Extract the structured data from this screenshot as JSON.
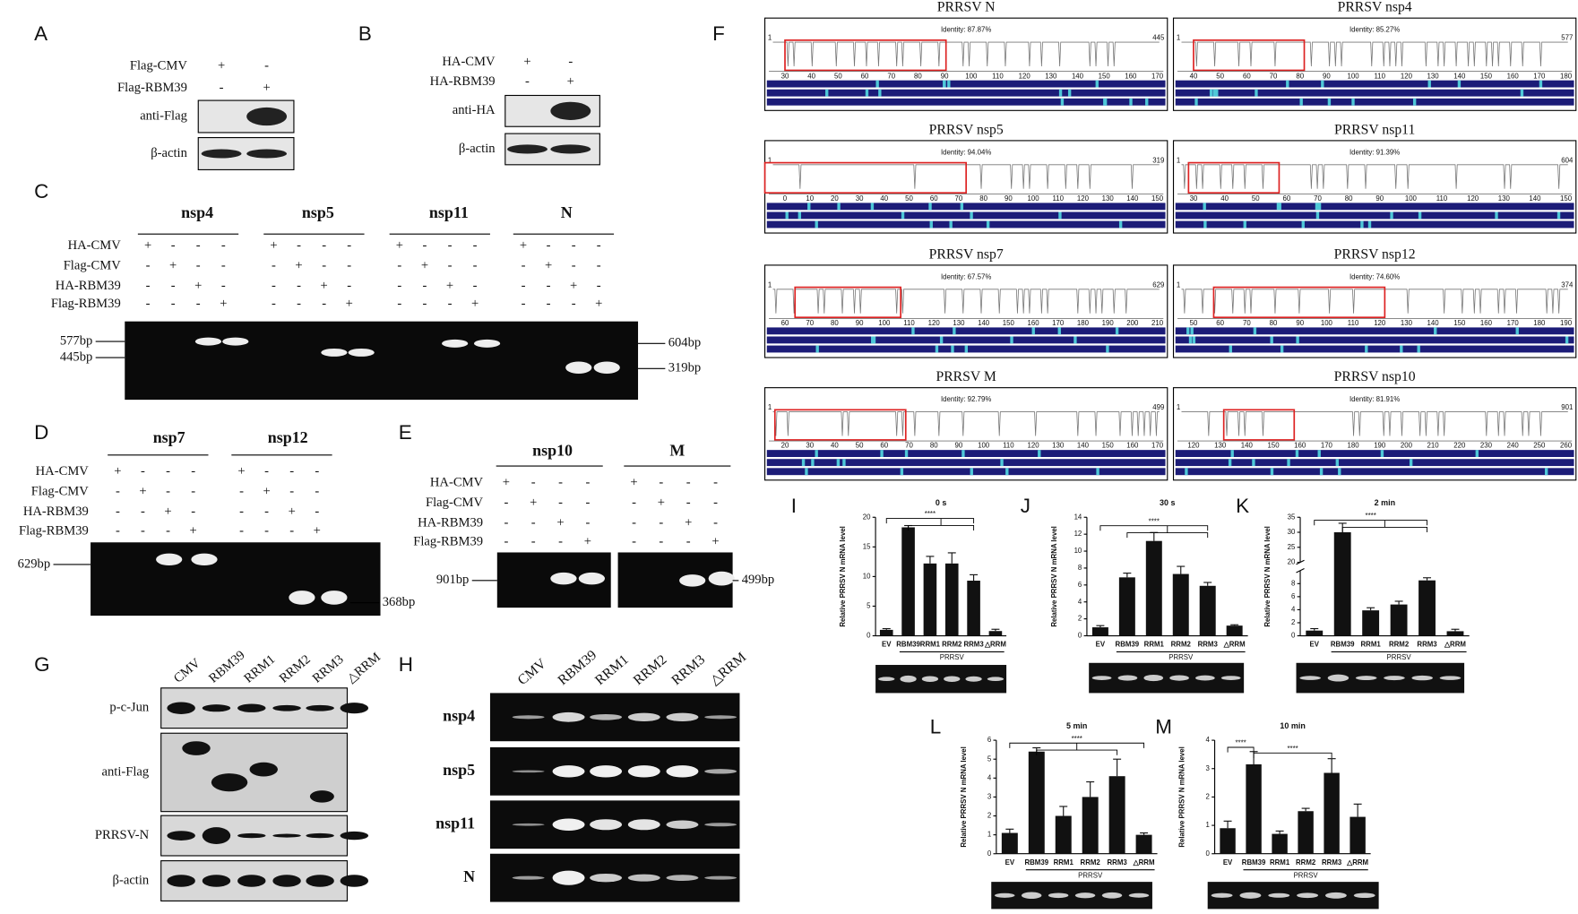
{
  "panels": {
    "A": {
      "label": "A",
      "conditions": [
        {
          "name": "Flag-CMV",
          "signs": [
            "+",
            "-"
          ]
        },
        {
          "name": "Flag-RBM39",
          "signs": [
            "-",
            "+"
          ]
        }
      ],
      "blots": [
        "anti-Flag",
        "β-actin"
      ]
    },
    "B": {
      "label": "B",
      "conditions": [
        {
          "name": "HA-CMV",
          "signs": [
            "+",
            "-"
          ]
        },
        {
          "name": "HA-RBM39",
          "signs": [
            "-",
            "+"
          ]
        }
      ],
      "blots": [
        "anti-HA",
        "β-actin"
      ]
    },
    "C": {
      "label": "C",
      "genes": [
        "nsp4",
        "nsp5",
        "nsp11",
        "N"
      ],
      "conditions": [
        {
          "name": "HA-CMV",
          "signs": [
            "+",
            "-",
            "-",
            "-",
            "+",
            "-",
            "-",
            "-",
            "+",
            "-",
            "-",
            "-",
            "+",
            "-",
            "-",
            "-"
          ]
        },
        {
          "name": "Flag-CMV",
          "signs": [
            "-",
            "+",
            "-",
            "-",
            "-",
            "+",
            "-",
            "-",
            "-",
            "+",
            "-",
            "-",
            "-",
            "+",
            "-",
            "-"
          ]
        },
        {
          "name": "HA-RBM39",
          "signs": [
            "-",
            "-",
            "+",
            "-",
            "-",
            "-",
            "+",
            "-",
            "-",
            "-",
            "+",
            "-",
            "-",
            "-",
            "+",
            "-"
          ]
        },
        {
          "name": "Flag-RBM39",
          "signs": [
            "-",
            "-",
            "-",
            "+",
            "-",
            "-",
            "-",
            "+",
            "-",
            "-",
            "-",
            "+",
            "-",
            "-",
            "-",
            "+"
          ]
        }
      ],
      "markers_left": [
        "577bp",
        "445bp"
      ],
      "markers_right": [
        "604bp",
        "319bp"
      ]
    },
    "D": {
      "label": "D",
      "genes": [
        "nsp7",
        "nsp12"
      ],
      "conditions": [
        {
          "name": "HA-CMV",
          "signs": [
            "+",
            "-",
            "-",
            "-",
            "+",
            "-",
            "-",
            "-"
          ]
        },
        {
          "name": "Flag-CMV",
          "signs": [
            "-",
            "+",
            "-",
            "-",
            "-",
            "+",
            "-",
            "-"
          ]
        },
        {
          "name": "HA-RBM39",
          "signs": [
            "-",
            "-",
            "+",
            "-",
            "-",
            "-",
            "+",
            "-"
          ]
        },
        {
          "name": "Flag-RBM39",
          "signs": [
            "-",
            "-",
            "-",
            "+",
            "-",
            "-",
            "-",
            "+"
          ]
        }
      ],
      "markers_left": [
        "629bp"
      ],
      "markers_right": [
        "368bp"
      ]
    },
    "E": {
      "label": "E",
      "genes": [
        "nsp10",
        "M"
      ],
      "conditions": [
        {
          "name": "HA-CMV",
          "signs": [
            "+",
            "-",
            "-",
            "-",
            "+",
            "-",
            "-",
            "-"
          ]
        },
        {
          "name": "Flag-CMV",
          "signs": [
            "-",
            "+",
            "-",
            "-",
            "-",
            "+",
            "-",
            "-"
          ]
        },
        {
          "name": "HA-RBM39",
          "signs": [
            "-",
            "-",
            "+",
            "-",
            "-",
            "-",
            "+",
            "-"
          ]
        },
        {
          "name": "Flag-RBM39",
          "signs": [
            "-",
            "-",
            "-",
            "+",
            "-",
            "-",
            "-",
            "+"
          ]
        }
      ],
      "markers_left": [
        "901bp"
      ],
      "markers_right": [
        "499bp"
      ]
    },
    "F": {
      "label": "F",
      "alignments": [
        {
          "title": "PRRSV N",
          "identity": "Identity: 87.87%",
          "start": "1",
          "end": "445",
          "ticks": [
            30,
            40,
            50,
            60,
            70,
            80,
            90,
            100,
            110,
            120,
            130,
            140,
            150,
            160,
            170
          ]
        },
        {
          "title": "PRRSV nsp4",
          "identity": "Identity: 85.27%",
          "start": "1",
          "end": "577",
          "ticks": [
            40,
            50,
            60,
            70,
            80,
            90,
            100,
            110,
            120,
            130,
            140,
            150,
            160,
            170,
            180
          ]
        },
        {
          "title": "PRRSV nsp5",
          "identity": "Identity: 94.04%",
          "start": "1",
          "end": "319",
          "ticks": [
            0,
            10,
            20,
            30,
            40,
            50,
            60,
            70,
            80,
            90,
            100,
            110,
            120,
            130,
            140,
            150
          ]
        },
        {
          "title": "PRRSV nsp11",
          "identity": "Identity: 91.39%",
          "start": "1",
          "end": "604",
          "ticks": [
            30,
            40,
            50,
            60,
            70,
            80,
            90,
            100,
            110,
            120,
            130,
            140,
            150
          ]
        },
        {
          "title": "PRRSV nsp7",
          "identity": "Identity: 67.57%",
          "start": "1",
          "end": "629",
          "ticks": [
            60,
            70,
            80,
            90,
            100,
            110,
            120,
            130,
            140,
            150,
            160,
            170,
            180,
            190,
            200,
            210
          ]
        },
        {
          "title": "PRRSV nsp12",
          "identity": "Identity: 74.60%",
          "start": "1",
          "end": "374",
          "ticks": [
            50,
            60,
            70,
            80,
            90,
            100,
            110,
            120,
            130,
            140,
            150,
            160,
            170,
            180,
            190
          ]
        },
        {
          "title": "PRRSV M",
          "identity": "Identity: 92.79%",
          "start": "1",
          "end": "499",
          "ticks": [
            20,
            30,
            40,
            50,
            60,
            70,
            80,
            90,
            100,
            110,
            120,
            130,
            140,
            150,
            160,
            170
          ]
        },
        {
          "title": "PRRSV nsp10",
          "identity": "Identity: 81.91%",
          "start": "1",
          "end": "901",
          "ticks": [
            120,
            130,
            140,
            150,
            160,
            170,
            180,
            190,
            200,
            210,
            220,
            230,
            240,
            250,
            260
          ]
        }
      ]
    },
    "G": {
      "label": "G",
      "lanes": [
        "CMV",
        "RBM39",
        "RRM1",
        "RRM2",
        "RRM3",
        "△RRM"
      ],
      "blots": [
        "p-c-Jun",
        "anti-Flag",
        "PRRSV-N",
        "β-actin"
      ]
    },
    "H": {
      "label": "H",
      "lanes": [
        "CMV",
        "RBM39",
        "RRM1",
        "RRM2",
        "RRM3",
        "△RRM"
      ],
      "genes": [
        "nsp4",
        "nsp5",
        "nsp11",
        "N"
      ]
    },
    "I": {
      "label": "I",
      "title": "0 s",
      "ylabel": "Relative PRRSV N mRNA level",
      "categories": [
        "EV",
        "RBM39",
        "RRM1",
        "RRM2",
        "RRM3",
        "△RRM"
      ],
      "group": "PRRSV",
      "significance": [
        "****"
      ],
      "values": [
        1,
        18.3,
        12.2,
        12.2,
        9.3,
        0.8
      ],
      "errors": [
        0.2,
        0.3,
        1.2,
        1.8,
        1,
        0.3
      ],
      "ylim": [
        0,
        20
      ],
      "yticks": [
        0,
        5,
        10,
        15,
        20
      ]
    },
    "J": {
      "label": "J",
      "title": "30 s",
      "ylabel": "Relative PRRSV N mRNA level",
      "categories": [
        "EV",
        "RBM39",
        "RRM1",
        "RRM2",
        "RRM3",
        "△RRM"
      ],
      "group": "PRRSV",
      "significance": [
        "****"
      ],
      "values": [
        1,
        6.9,
        11.2,
        7.3,
        5.9,
        1.2
      ],
      "errors": [
        0.2,
        0.5,
        1,
        0.9,
        0.4,
        0.1
      ],
      "ylim": [
        0,
        14
      ],
      "yticks": [
        0,
        2,
        4,
        6,
        8,
        10,
        12,
        14
      ]
    },
    "K": {
      "label": "K",
      "title": "2 min",
      "ylabel": "Relative PRRSV N mRNA level",
      "categories": [
        "EV",
        "RBM39",
        "RRM1",
        "RRM2",
        "RRM3",
        "△RRM"
      ],
      "group": "PRRSV",
      "significance": [
        "****"
      ],
      "values": [
        0.8,
        30,
        3.9,
        4.8,
        8.5,
        0.7
      ],
      "errors": [
        0.3,
        3,
        0.4,
        0.5,
        0.4,
        0.3
      ],
      "ylim": [
        0,
        35
      ],
      "ybreak": [
        10,
        20
      ],
      "yticks": [
        0,
        2,
        4,
        6,
        8,
        20,
        25,
        30,
        35
      ]
    },
    "L": {
      "label": "L",
      "title": "5 min",
      "ylabel": "Relative PRRSV N mRNA level",
      "categories": [
        "EV",
        "RBM39",
        "RRM1",
        "RRM2",
        "RRM3",
        "△RRM"
      ],
      "group": "PRRSV",
      "significance": [
        "****"
      ],
      "values": [
        1.1,
        5.4,
        2,
        3,
        4.1,
        1
      ],
      "errors": [
        0.2,
        0.2,
        0.5,
        0.8,
        0.9,
        0.1
      ],
      "ylim": [
        0,
        6
      ],
      "yticks": [
        0,
        1,
        2,
        3,
        4,
        5,
        6
      ]
    },
    "M": {
      "label": "M",
      "title": "10 min",
      "ylabel": "Relative PRRSV N mRNA level",
      "categories": [
        "EV",
        "RBM39",
        "RRM1",
        "RRM2",
        "RRM3",
        "△RRM"
      ],
      "group": "PRRSV",
      "significance": [
        "****",
        "****"
      ],
      "values": [
        0.9,
        3.15,
        0.7,
        1.5,
        2.85,
        1.3
      ],
      "errors": [
        0.25,
        0.45,
        0.1,
        0.1,
        0.5,
        0.45
      ],
      "ylim": [
        0,
        4
      ],
      "yticks": [
        0,
        1,
        2,
        3,
        4
      ]
    }
  }
}
